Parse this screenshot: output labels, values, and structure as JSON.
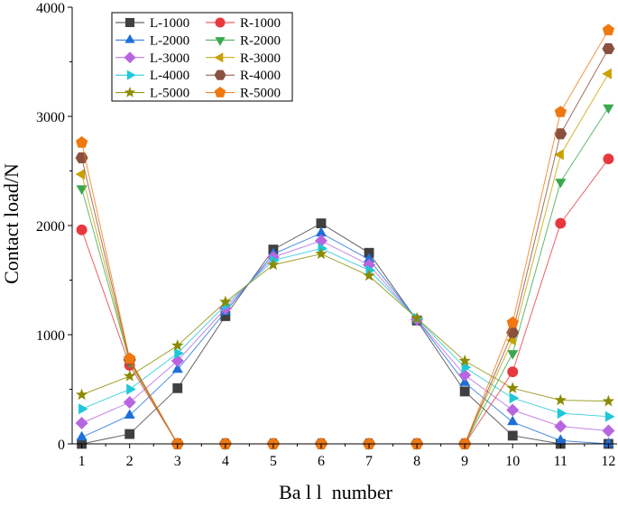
{
  "chart_data": {
    "type": "line",
    "title": "",
    "xlabel": "Ba l l  number",
    "ylabel": "Contact load/N",
    "x": [
      1,
      2,
      3,
      4,
      5,
      6,
      7,
      8,
      9,
      10,
      11,
      12
    ],
    "xlim": [
      0.8,
      12.2
    ],
    "ylim": [
      0,
      4000
    ],
    "yticks": [
      0,
      1000,
      2000,
      3000,
      4000
    ],
    "grid": false,
    "legend_position": "top-left",
    "series": [
      {
        "name": "L-1000",
        "color": "#404040",
        "marker": "square",
        "values": [
          0,
          90,
          510,
          1170,
          1780,
          2020,
          1750,
          1130,
          480,
          75,
          0,
          0
        ]
      },
      {
        "name": "L-2000",
        "color": "#1f6fd8",
        "marker": "triangle-up",
        "values": [
          60,
          260,
          680,
          1210,
          1740,
          1930,
          1690,
          1140,
          560,
          200,
          30,
          0
        ]
      },
      {
        "name": "L-3000",
        "color": "#b866e0",
        "marker": "diamond",
        "values": [
          190,
          380,
          760,
          1240,
          1710,
          1860,
          1640,
          1140,
          630,
          310,
          160,
          120
        ]
      },
      {
        "name": "L-4000",
        "color": "#1ec8d8",
        "marker": "triangle-right",
        "values": [
          320,
          500,
          830,
          1270,
          1680,
          1790,
          1590,
          1150,
          700,
          420,
          280,
          250
        ]
      },
      {
        "name": "L-5000",
        "color": "#8b8b00",
        "marker": "star",
        "values": [
          450,
          620,
          900,
          1300,
          1640,
          1740,
          1540,
          1150,
          760,
          510,
          400,
          390
        ]
      },
      {
        "name": "R-1000",
        "color": "#e8383d",
        "marker": "circle",
        "values": [
          1960,
          720,
          0,
          0,
          0,
          0,
          0,
          0,
          0,
          660,
          2020,
          2610
        ]
      },
      {
        "name": "R-2000",
        "color": "#3aa84e",
        "marker": "triangle-down",
        "values": [
          2340,
          750,
          0,
          0,
          0,
          0,
          0,
          0,
          0,
          830,
          2400,
          3080
        ]
      },
      {
        "name": "R-3000",
        "color": "#c9a100",
        "marker": "triangle-left",
        "values": [
          2470,
          760,
          0,
          0,
          0,
          0,
          0,
          0,
          0,
          950,
          2650,
          3390
        ]
      },
      {
        "name": "R-4000",
        "color": "#8a5040",
        "marker": "hexagon",
        "values": [
          2620,
          770,
          0,
          0,
          0,
          0,
          0,
          0,
          0,
          1020,
          2840,
          3620
        ]
      },
      {
        "name": "R-5000",
        "color": "#f07810",
        "marker": "pentagon",
        "values": [
          2760,
          780,
          0,
          0,
          0,
          0,
          0,
          0,
          0,
          1110,
          3040,
          3790
        ]
      }
    ]
  }
}
